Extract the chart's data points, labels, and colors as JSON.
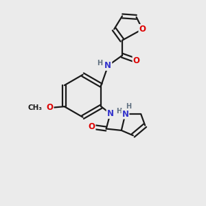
{
  "background_color": "#ebebeb",
  "bond_color": "#1a1a1a",
  "bond_width": 1.6,
  "atom_colors": {
    "O": "#dd0000",
    "N": "#3333cc",
    "H": "#607080",
    "C": "#1a1a1a"
  },
  "font_size": 8.5,
  "fig_width": 3.0,
  "fig_height": 3.0,
  "dpi": 100
}
